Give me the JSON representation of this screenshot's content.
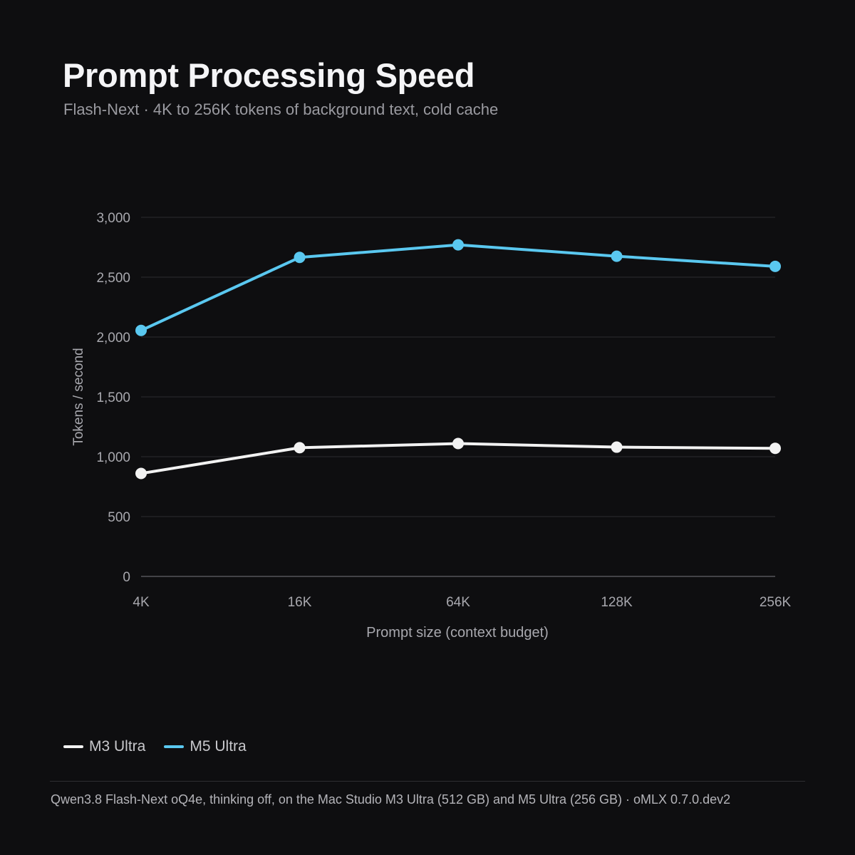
{
  "header": {
    "title": "Prompt Processing Speed",
    "subtitle": "Flash-Next · 4K to 256K tokens of background text, cold cache"
  },
  "chart_data": {
    "type": "line",
    "title": "Prompt Processing Speed",
    "subtitle": "Flash-Next · 4K to 256K tokens of background text, cold cache",
    "xlabel": "Prompt size (context budget)",
    "ylabel": "Tokens / second",
    "categories": [
      "4K",
      "16K",
      "64K",
      "128K",
      "256K"
    ],
    "ylim": [
      0,
      3000
    ],
    "yticks": [
      0,
      500,
      1000,
      1500,
      2000,
      2500,
      3000
    ],
    "ytick_labels": [
      "0",
      "500",
      "1,000",
      "1,500",
      "2,000",
      "2,500",
      "3,000"
    ],
    "grid": true,
    "legend_position": "bottom-left",
    "series": [
      {
        "name": "M3 Ultra",
        "color": "#f2f2f2",
        "values": [
          860,
          1075,
          1110,
          1080,
          1070
        ]
      },
      {
        "name": "M5 Ultra",
        "color": "#5ac8f0",
        "values": [
          2055,
          2665,
          2770,
          2675,
          2590
        ]
      }
    ]
  },
  "footer": {
    "note": "Qwen3.8 Flash-Next oQ4e, thinking off, on the Mac Studio M3 Ultra (512 GB) and M5 Ultra (256 GB) · oMLX 0.7.0.dev2"
  },
  "colors": {
    "background": "#0e0e10",
    "grid": "#2c2c30",
    "axis": "#55555a",
    "tick_text": "#a8a8ae"
  }
}
